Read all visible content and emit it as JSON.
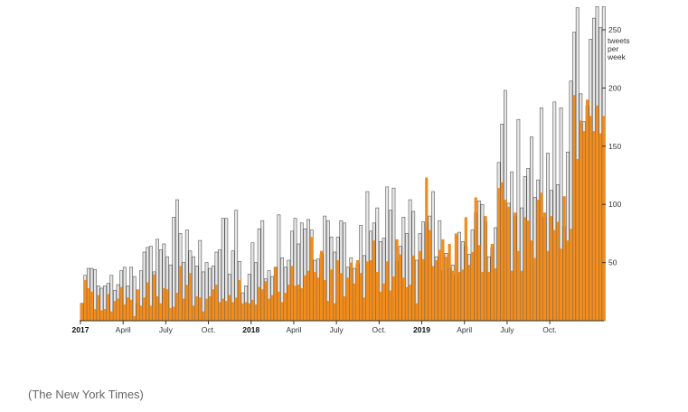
{
  "credit": "(The New York Times)",
  "chart_data": {
    "type": "bar",
    "stacked": "overlay",
    "unit_label": [
      "tweets",
      "per",
      "week"
    ],
    "ylim": [
      0,
      275
    ],
    "yticks": [
      50,
      100,
      150,
      200,
      250
    ],
    "x_labels": [
      {
        "label": "2017",
        "week": 0,
        "bold": true
      },
      {
        "label": "April",
        "week": 13,
        "bold": false
      },
      {
        "label": "July",
        "week": 26,
        "bold": false
      },
      {
        "label": "Oct.",
        "week": 39,
        "bold": false
      },
      {
        "label": "2018",
        "week": 52,
        "bold": true
      },
      {
        "label": "April",
        "week": 65,
        "bold": false
      },
      {
        "label": "July",
        "week": 78,
        "bold": false
      },
      {
        "label": "Oct.",
        "week": 91,
        "bold": false
      },
      {
        "label": "2019",
        "week": 104,
        "bold": true
      },
      {
        "label": "April",
        "week": 117,
        "bold": false
      },
      {
        "label": "July",
        "week": 130,
        "bold": false
      },
      {
        "label": "Oct.",
        "week": 143,
        "bold": false
      }
    ],
    "colors": {
      "orange": "#f28c1b",
      "gray": "#e6e6e6",
      "gray_stroke": "#555555",
      "axis": "#333333"
    },
    "series": [
      {
        "name": "total",
        "values": [
          15,
          39,
          45,
          45,
          44,
          30,
          28,
          30,
          32,
          39,
          26,
          31,
          43,
          46,
          30,
          46,
          38,
          15,
          43,
          59,
          63,
          64,
          42,
          70,
          61,
          66,
          55,
          48,
          89,
          104,
          75,
          50,
          78,
          60,
          55,
          47,
          69,
          42,
          50,
          45,
          47,
          59,
          61,
          88,
          88,
          40,
          60,
          95,
          51,
          24,
          30,
          40,
          67,
          50,
          79,
          86,
          36,
          43,
          38,
          46,
          91,
          54,
          46,
          52,
          77,
          88,
          66,
          84,
          79,
          87,
          78,
          52,
          53,
          57,
          90,
          86,
          72,
          59,
          72,
          86,
          84,
          46,
          54,
          45,
          49,
          82,
          56,
          111,
          77,
          84,
          97,
          68,
          71,
          115,
          95,
          114,
          51,
          64,
          89,
          75,
          104,
          94,
          52,
          75,
          85,
          84,
          90,
          111,
          55,
          86,
          43,
          58,
          45,
          48,
          39,
          76,
          68,
          64,
          57,
          78,
          93,
          103,
          100,
          85,
          55,
          63,
          80,
          136,
          169,
          198,
          101,
          128,
          90,
          173,
          97,
          124,
          131,
          158,
          106,
          121,
          183,
          89,
          144,
          112,
          188,
          117,
          183,
          81,
          145,
          206,
          248,
          269,
          195,
          171,
          185,
          242,
          260,
          270,
          252,
          270
        ],
        "display_values": [
          15,
          39,
          46,
          46,
          45,
          30,
          27,
          30,
          31,
          39,
          24,
          30,
          41,
          47,
          29,
          48,
          38,
          13,
          41,
          57,
          62,
          64,
          43,
          70,
          59,
          65,
          54,
          49,
          88,
          104,
          77,
          51,
          77,
          60,
          54,
          47,
          68,
          41,
          51,
          45,
          47,
          58,
          62,
          87,
          89,
          41,
          60,
          93,
          50,
          23,
          30,
          39,
          67,
          50,
          78,
          85,
          35,
          42,
          38,
          45,
          92,
          53,
          45,
          51,
          76,
          88,
          66,
          84,
          79,
          87,
          78,
          51,
          54,
          57,
          90,
          85,
          71,
          59,
          72,
          86,
          84,
          45,
          55,
          46,
          49,
          81,
          55,
          112,
          77,
          84,
          97,
          69,
          71,
          116,
          96,
          114,
          51,
          64,
          89,
          74,
          104,
          94,
          51,
          75,
          85,
          84,
          90,
          112,
          55,
          86,
          43,
          57,
          45,
          48,
          38,
          77,
          68,
          64,
          57,
          78,
          93,
          103,
          100,
          85,
          55,
          63,
          80,
          136,
          168,
          199,
          101,
          128,
          89,
          173,
          97,
          124,
          131,
          158,
          106,
          120,
          184,
          89,
          144,
          111,
          187,
          117,
          183,
          82,
          145,
          206,
          248,
          269,
          195,
          171,
          185,
          242,
          260,
          270,
          252,
          270
        ]
      },
      {
        "name": "orange",
        "values": [
          15,
          35,
          28,
          25,
          10,
          22,
          9,
          10,
          23,
          8,
          17,
          19,
          29,
          14,
          20,
          18,
          4,
          27,
          13,
          20,
          33,
          13,
          40,
          21,
          15,
          28,
          27,
          11,
          12,
          24,
          47,
          19,
          31,
          41,
          13,
          21,
          20,
          8,
          19,
          21,
          27,
          31,
          16,
          19,
          17,
          22,
          16,
          20,
          35,
          15,
          16,
          15,
          18,
          14,
          29,
          27,
          34,
          19,
          22,
          46,
          25,
          16,
          24,
          31,
          47,
          30,
          31,
          28,
          39,
          43,
          72,
          42,
          37,
          60,
          35,
          17,
          44,
          15,
          52,
          41,
          21,
          37,
          50,
          32,
          52,
          41,
          20,
          51,
          52,
          69,
          42,
          25,
          32,
          51,
          26,
          38,
          70,
          57,
          37,
          29,
          31,
          56,
          15,
          60,
          53,
          123,
          78,
          47,
          52,
          61,
          70,
          55,
          66,
          43,
          75,
          42,
          44,
          89,
          48,
          59,
          106,
          65,
          42,
          90,
          42,
          66,
          45,
          114,
          119,
          104,
          98,
          43,
          93,
          60,
          43,
          89,
          86,
          69,
          54,
          104,
          110,
          93,
          60,
          90,
          78,
          85,
          62,
          107,
          69,
          79,
          194,
          139,
          172,
          163,
          190,
          176,
          163,
          185,
          161,
          176
        ],
        "display_values": [
          15,
          36,
          28,
          26,
          10,
          23,
          9,
          10,
          24,
          7,
          7,
          19,
          28,
          12,
          20,
          19,
          2,
          26,
          17,
          20,
          34,
          13,
          40,
          21,
          16,
          28,
          26,
          8,
          12,
          24,
          48,
          19,
          32,
          41,
          13,
          22,
          20,
          8,
          19,
          20,
          27,
          32,
          16,
          19,
          17,
          22,
          17,
          20,
          35,
          14,
          16,
          14,
          18,
          14,
          28,
          26,
          33,
          18,
          21,
          45,
          24,
          15,
          22,
          30,
          47,
          29,
          30,
          27,
          38,
          42,
          70,
          41,
          36,
          59,
          34,
          15,
          44,
          13,
          52,
          40,
          20,
          35,
          50,
          30,
          52,
          40,
          19,
          51,
          52,
          70,
          42,
          24,
          30,
          51,
          23,
          37,
          70,
          58,
          35,
          28,
          30,
          57,
          14,
          62,
          53,
          125,
          80,
          46,
          52,
          62,
          71,
          55,
          66,
          43,
          77,
          42,
          44,
          91,
          49,
          59,
          109,
          65,
          42,
          92,
          42,
          67,
          44,
          117,
          122,
          105,
          100,
          43,
          94,
          60,
          44,
          92,
          89,
          70,
          55,
          108,
          114,
          96,
          62,
          93,
          80,
          88,
          64,
          112,
          72,
          82,
          196,
          145,
          176,
          166,
          193,
          179,
          166,
          188,
          163,
          178
        ]
      }
    ]
  }
}
